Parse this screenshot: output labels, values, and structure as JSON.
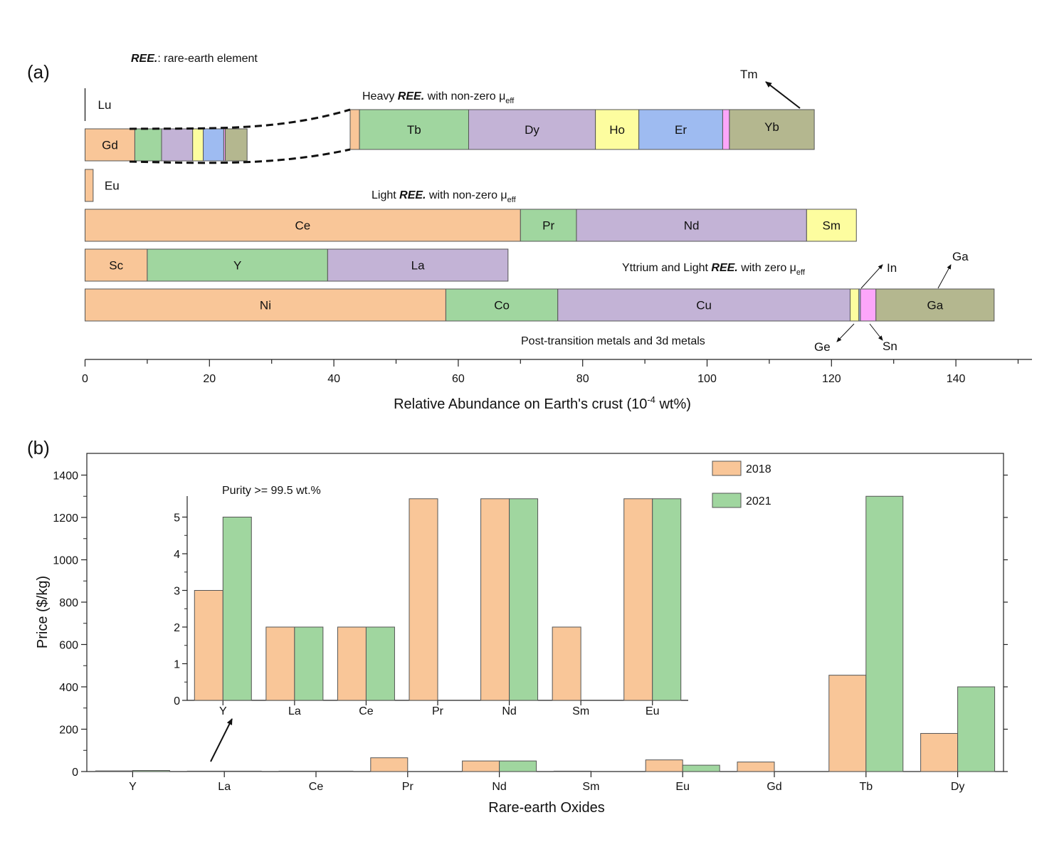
{
  "colors": {
    "orange": "#f9c698",
    "green": "#a0d69f",
    "purple": "#c3b3d6",
    "yellow": "#fdfd9f",
    "blue": "#9ebbf1",
    "pink": "#fca6fa",
    "olive": "#b4b78f"
  },
  "panel_a": {
    "letter": "(a)",
    "legend_note_bold": "REE.",
    "legend_note_rest": ": rare-earth element",
    "labels": {
      "heavy_pre": "Heavy ",
      "heavy_bold": "REE.",
      "heavy_post": " with non-zero μ",
      "heavy_sub": "eff",
      "light_pre": "Light ",
      "light_bold": "REE.",
      "light_post": " with non-zero μ",
      "light_sub": "eff",
      "ytt_pre": "Yttrium and Light ",
      "ytt_bold": "REE.",
      "ytt_post": " with zero μ",
      "ytt_sub": "eff",
      "post": "Post-transition metals and 3d metals"
    },
    "xaxis": {
      "title_pre": "Relative Abundance on Earth's crust (10",
      "title_sup": "-4",
      "title_post": " wt%)",
      "ticks": [
        "0",
        "20",
        "40",
        "60",
        "80",
        "100",
        "120",
        "140"
      ]
    },
    "callouts": {
      "Tm": "Tm",
      "In": "In",
      "Ga": "Ga",
      "Ge": "Ge",
      "Sn": "Sn"
    }
  },
  "chart_data": [
    {
      "type": "bar",
      "orientation": "horizontal-stacked",
      "xlabel": "Relative Abundance on Earth's crust (10^-4 wt%)",
      "xlim": [
        0,
        150
      ],
      "rows": [
        {
          "name": "Lu",
          "segments": [
            {
              "label": "Lu",
              "value": 0.1
            }
          ]
        },
        {
          "name": "Heavy REE. with non-zero μeff",
          "segments": [
            {
              "label": "Gd",
              "value": 8.0
            },
            {
              "label": "Tb",
              "value": 4.3
            },
            {
              "label": "Dy",
              "value": 5.0
            },
            {
              "label": "Ho",
              "value": 1.7
            },
            {
              "label": "Er",
              "value": 3.3
            },
            {
              "label": "Tm",
              "value": 0.25
            },
            {
              "label": "Yb",
              "value": 3.5
            }
          ]
        },
        {
          "name": "Eu",
          "segments": [
            {
              "label": "Eu",
              "value": 1.3
            }
          ]
        },
        {
          "name": "Light REE. with non-zero μeff",
          "segments": [
            {
              "label": "Ce",
              "value": 70
            },
            {
              "label": "Pr",
              "value": 9
            },
            {
              "label": "Nd",
              "value": 37
            },
            {
              "label": "Sm",
              "value": 8
            }
          ]
        },
        {
          "name": "Yttrium and Light REE. with zero μeff",
          "segments": [
            {
              "label": "Sc",
              "value": 10
            },
            {
              "label": "Y",
              "value": 29
            },
            {
              "label": "La",
              "value": 29
            }
          ]
        },
        {
          "name": "Post-transition metals and 3d metals",
          "segments": [
            {
              "label": "Ni",
              "value": 58
            },
            {
              "label": "Co",
              "value": 18
            },
            {
              "label": "Cu",
              "value": 47
            },
            {
              "label": "Ge",
              "value": 1.4
            },
            {
              "label": "In",
              "value": 0.25
            },
            {
              "label": "Sn",
              "value": 2.5
            },
            {
              "label": "Ga",
              "value": 19
            }
          ]
        }
      ],
      "zoom": {
        "row": "Heavy REE. with non-zero μeff",
        "segments": [
          {
            "label": "Gd",
            "value": 1.8
          },
          {
            "label": "Tb",
            "value": 21.1
          },
          {
            "label": "Dy",
            "value": 24.5
          },
          {
            "label": "Ho",
            "value": 8.4
          },
          {
            "label": "Er",
            "value": 16.2
          },
          {
            "label": "Tm",
            "value": 1.3
          },
          {
            "label": "Yb",
            "value": 16.4
          }
        ]
      }
    },
    {
      "type": "bar",
      "title": "",
      "xlabel": "Rare-earth Oxides",
      "ylabel": "Price ($/kg)",
      "ylim": [
        0,
        1500
      ],
      "yticks": [
        0,
        200,
        400,
        600,
        800,
        1000,
        1200,
        1400
      ],
      "categories": [
        "Y",
        "La",
        "Ce",
        "Pr",
        "Nd",
        "Sm",
        "Eu",
        "Gd",
        "Tb",
        "Dy"
      ],
      "series": [
        {
          "name": "2018",
          "values": [
            3,
            2,
            2,
            65,
            50,
            2,
            55,
            45,
            455,
            180
          ]
        },
        {
          "name": "2021",
          "values": [
            5,
            2,
            2,
            0,
            50,
            0,
            30,
            0,
            1300,
            400
          ]
        }
      ],
      "legend": "top-right",
      "inset": {
        "title": "Purity >= 99.5 wt.%",
        "ylim": [
          0,
          5.5
        ],
        "yticks": [
          0,
          1,
          2,
          3,
          4,
          5
        ],
        "categories": [
          "Y",
          "La",
          "Ce",
          "Pr",
          "Nd",
          "Sm",
          "Eu"
        ],
        "series": [
          {
            "name": "2018",
            "values": [
              3,
              2,
              2,
              5.5,
              5.5,
              2,
              5.5
            ]
          },
          {
            "name": "2021",
            "values": [
              5,
              2,
              2,
              0,
              5.5,
              0,
              5.5
            ]
          }
        ]
      }
    }
  ]
}
